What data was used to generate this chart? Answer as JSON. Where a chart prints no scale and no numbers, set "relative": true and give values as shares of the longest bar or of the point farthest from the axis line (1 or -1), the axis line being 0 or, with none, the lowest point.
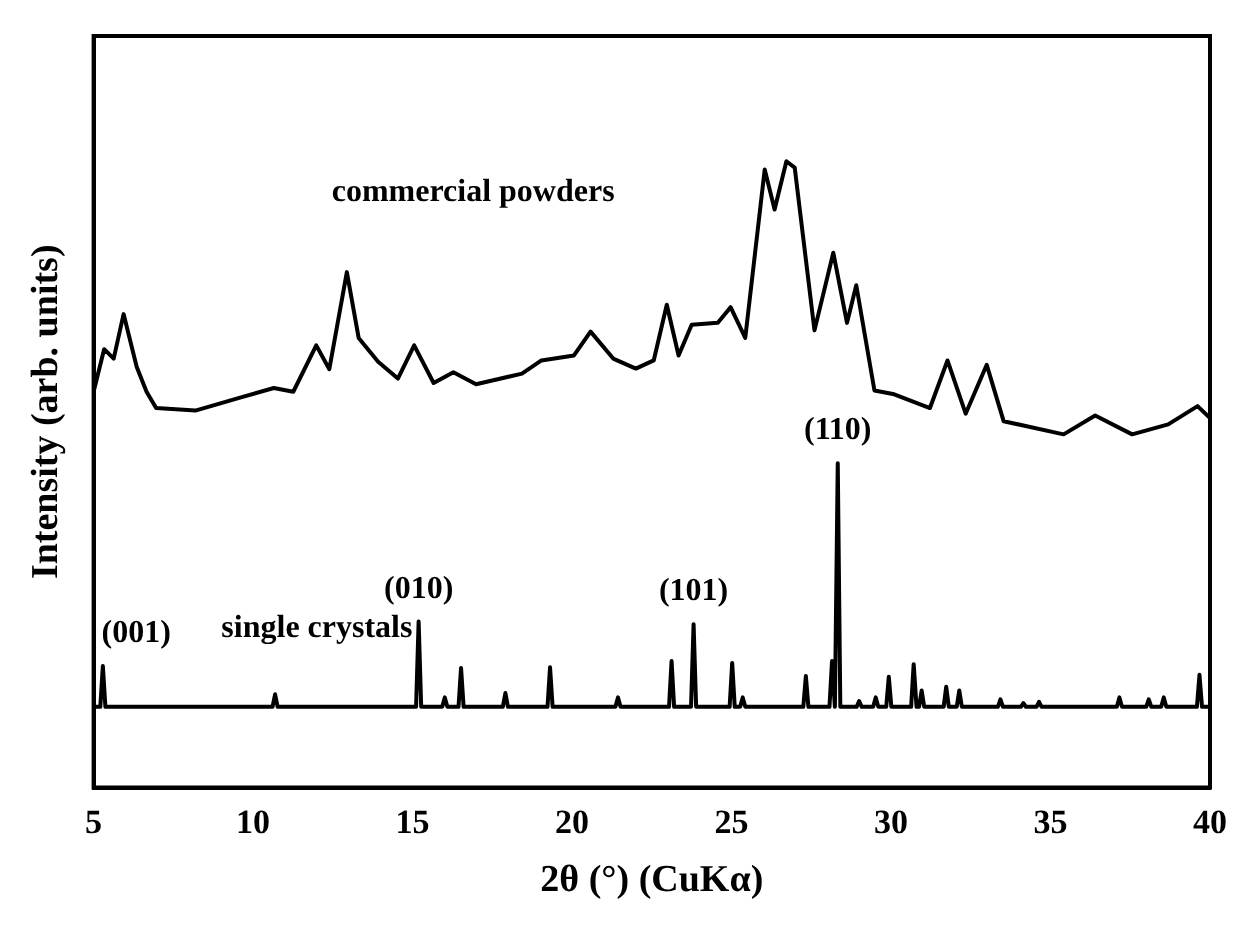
{
  "chart_data": {
    "type": "line",
    "relative": true,
    "xlabel": "2θ (°) (CuKα)",
    "ylabel": "Intensity (arb. units)",
    "xlim": [
      5,
      40
    ],
    "xticks": [
      5,
      10,
      15,
      20,
      25,
      30,
      35,
      40
    ],
    "legend": false,
    "grid": false,
    "marker": "none",
    "line_style": "solid",
    "series": [
      {
        "name": "commercial powders",
        "color": "#000000",
        "x": [
          5.0,
          5.33,
          5.63,
          5.94,
          6.35,
          6.66,
          6.96,
          8.19,
          9.62,
          10.65,
          11.26,
          11.98,
          12.39,
          12.94,
          13.31,
          13.92,
          14.54,
          15.05,
          15.66,
          16.28,
          16.99,
          18.43,
          19.04,
          20.06,
          20.58,
          21.29,
          22.0,
          22.56,
          22.97,
          23.34,
          23.75,
          24.57,
          24.97,
          25.43,
          26.04,
          26.35,
          26.72,
          26.98,
          27.6,
          28.19,
          28.62,
          28.91,
          29.48,
          30.1,
          31.22,
          31.77,
          32.34,
          33.0,
          33.53,
          35.41,
          36.4,
          37.56,
          38.69,
          39.61,
          40.0
        ],
        "values": [
          0.632,
          0.7,
          0.685,
          0.756,
          0.672,
          0.632,
          0.606,
          0.602,
          0.623,
          0.638,
          0.632,
          0.706,
          0.668,
          0.823,
          0.718,
          0.68,
          0.653,
          0.706,
          0.646,
          0.663,
          0.644,
          0.661,
          0.682,
          0.69,
          0.728,
          0.685,
          0.669,
          0.682,
          0.771,
          0.69,
          0.739,
          0.742,
          0.767,
          0.718,
          0.987,
          0.923,
          1,
          0.99,
          0.73,
          0.854,
          0.742,
          0.802,
          0.634,
          0.628,
          0.606,
          0.682,
          0.597,
          0.675,
          0.585,
          0.564,
          0.594,
          0.564,
          0.58,
          0.609,
          0.59
        ]
      },
      {
        "name": "single crystals",
        "color": "#000000",
        "x": [
          5.0,
          5.21,
          5.29,
          5.37,
          10.61,
          10.69,
          10.77,
          15.11,
          15.19,
          15.27,
          15.93,
          16.01,
          16.09,
          16.44,
          16.52,
          16.6,
          17.83,
          17.91,
          17.99,
          19.23,
          19.31,
          19.39,
          21.36,
          21.44,
          21.52,
          23.04,
          23.12,
          23.2,
          23.73,
          23.81,
          23.89,
          24.94,
          25.02,
          25.1,
          25.27,
          25.35,
          25.43,
          27.25,
          27.33,
          27.41,
          28.07,
          28.15,
          28.24,
          28.33,
          28.41,
          28.92,
          29.0,
          29.08,
          29.44,
          29.52,
          29.6,
          29.85,
          29.93,
          30.01,
          30.63,
          30.71,
          30.8,
          30.88,
          30.96,
          31.04,
          31.65,
          31.73,
          31.81,
          32.06,
          32.14,
          32.22,
          33.35,
          33.43,
          33.51,
          34.07,
          34.15,
          34.23,
          34.56,
          34.64,
          34.72,
          37.08,
          37.16,
          37.24,
          38.0,
          38.08,
          38.16,
          38.47,
          38.55,
          38.63,
          39.59,
          39.67,
          39.75,
          40.0
        ],
        "values": [
          0.129,
          0.129,
          0.194,
          0.129,
          0.129,
          0.149,
          0.129,
          0.129,
          0.265,
          0.129,
          0.129,
          0.144,
          0.129,
          0.129,
          0.191,
          0.129,
          0.129,
          0.151,
          0.129,
          0.129,
          0.192,
          0.129,
          0.129,
          0.144,
          0.129,
          0.129,
          0.202,
          0.129,
          0.129,
          0.261,
          0.129,
          0.129,
          0.199,
          0.129,
          0.129,
          0.144,
          0.129,
          0.129,
          0.178,
          0.129,
          0.129,
          0.202,
          0.129,
          0.518,
          0.129,
          0.129,
          0.138,
          0.129,
          0.129,
          0.144,
          0.129,
          0.129,
          0.177,
          0.129,
          0.129,
          0.197,
          0.129,
          0.129,
          0.155,
          0.129,
          0.129,
          0.161,
          0.129,
          0.129,
          0.155,
          0.129,
          0.129,
          0.141,
          0.129,
          0.129,
          0.135,
          0.129,
          0.129,
          0.137,
          0.129,
          0.129,
          0.144,
          0.129,
          0.129,
          0.141,
          0.129,
          0.129,
          0.144,
          0.129,
          0.129,
          0.18,
          0.129,
          0.129
        ]
      }
    ],
    "annotations": [
      {
        "text": "(001)",
        "x": 5.29,
        "y": 0.194
      },
      {
        "text": "(010)",
        "x": 15.19,
        "y": 0.265
      },
      {
        "text": "(101)",
        "x": 23.81,
        "y": 0.261
      },
      {
        "text": "(110)",
        "x": 28.33,
        "y": 0.518
      }
    ]
  }
}
